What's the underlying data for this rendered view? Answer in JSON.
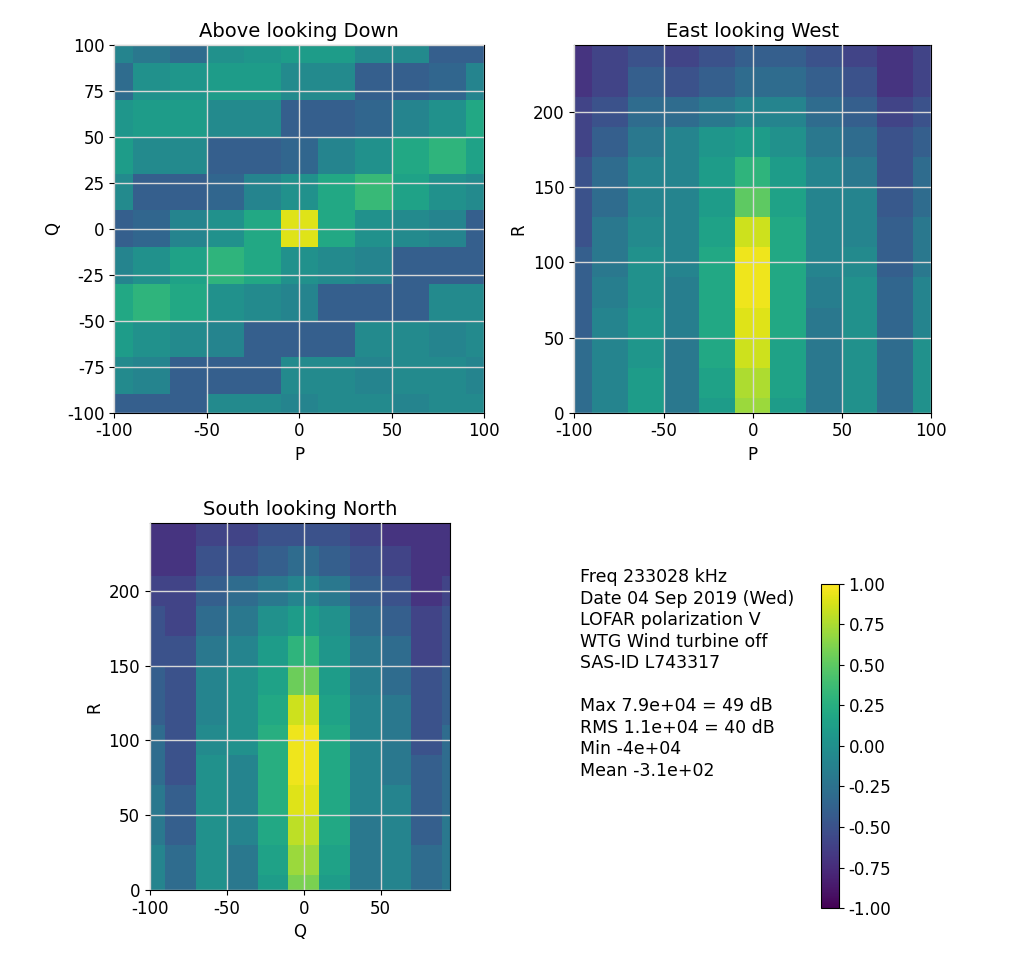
{
  "chart_data": [
    {
      "type": "heatmap",
      "title": "Above looking Down",
      "xlabel": "P",
      "ylabel": "Q",
      "xlim": [
        -100,
        100
      ],
      "ylim": [
        -100,
        100
      ],
      "xticks": [
        -100,
        -50,
        0,
        50,
        100
      ],
      "yticks": [
        -100,
        -75,
        -50,
        -25,
        0,
        25,
        50,
        75,
        100
      ],
      "grid": true,
      "x": [
        -100,
        -80,
        -60,
        -40,
        -20,
        0,
        20,
        40,
        60,
        80,
        100
      ],
      "y": [
        -100,
        -80,
        -60,
        -40,
        -20,
        0,
        20,
        40,
        60,
        80,
        100
      ],
      "cells": [
        [
          -0.4,
          -0.4,
          -0.4,
          -0.05,
          -0.05,
          -0.1,
          -0.05,
          -0.05,
          -0.1,
          -0.05,
          -0.05
        ],
        [
          -0.05,
          -0.1,
          -0.4,
          -0.4,
          -0.4,
          -0.05,
          -0.05,
          -0.1,
          -0.05,
          -0.05,
          -0.1
        ],
        [
          0.1,
          0.0,
          -0.05,
          -0.1,
          -0.4,
          -0.4,
          -0.4,
          -0.05,
          -0.05,
          -0.1,
          -0.05
        ],
        [
          0.2,
          0.3,
          0.2,
          0.0,
          -0.05,
          -0.1,
          -0.4,
          -0.4,
          -0.4,
          -0.05,
          -0.05
        ],
        [
          -0.1,
          0.0,
          0.15,
          0.3,
          0.2,
          0.0,
          -0.05,
          -0.1,
          -0.4,
          -0.4,
          -0.4
        ],
        [
          -0.4,
          -0.35,
          -0.1,
          0.0,
          0.2,
          0.9,
          0.2,
          0.0,
          -0.05,
          -0.1,
          -0.4
        ],
        [
          -0.05,
          -0.4,
          -0.4,
          -0.35,
          -0.1,
          0.0,
          0.2,
          0.35,
          0.15,
          0.0,
          -0.05
        ],
        [
          0.1,
          -0.05,
          -0.05,
          -0.4,
          -0.4,
          -0.35,
          -0.1,
          0.0,
          0.2,
          0.3,
          0.15
        ],
        [
          0.05,
          0.1,
          0.1,
          -0.05,
          -0.05,
          -0.4,
          -0.4,
          -0.35,
          -0.1,
          0.0,
          0.2
        ],
        [
          -0.3,
          0.0,
          0.05,
          0.1,
          0.1,
          -0.05,
          -0.05,
          -0.4,
          -0.4,
          -0.35,
          -0.1
        ],
        [
          -0.1,
          -0.2,
          -0.3,
          0.0,
          0.05,
          0.1,
          0.1,
          -0.05,
          -0.05,
          -0.4,
          -0.4
        ]
      ]
    },
    {
      "type": "heatmap",
      "title": "East looking West",
      "xlabel": "P",
      "ylabel": "R",
      "xlim": [
        -100,
        100
      ],
      "ylim": [
        0,
        245
      ],
      "xticks": [
        -100,
        -50,
        0,
        50,
        100
      ],
      "yticks": [
        0,
        50,
        100,
        150,
        200
      ],
      "grid": true,
      "x": [
        -100,
        -80,
        -60,
        -40,
        -20,
        0,
        20,
        40,
        60,
        80,
        100
      ],
      "y": [
        0,
        20,
        40,
        60,
        80,
        100,
        120,
        140,
        160,
        180,
        200,
        220,
        240
      ],
      "cells": [
        [
          -0.3,
          -0.1,
          0.1,
          -0.2,
          0.1,
          0.7,
          0.1,
          -0.2,
          0.0,
          -0.3,
          0.0
        ],
        [
          -0.3,
          -0.1,
          0.1,
          -0.2,
          0.15,
          0.75,
          0.15,
          -0.2,
          0.0,
          -0.3,
          0.0
        ],
        [
          -0.3,
          -0.1,
          0.05,
          -0.2,
          0.2,
          0.85,
          0.15,
          -0.2,
          0.0,
          -0.3,
          0.0
        ],
        [
          -0.4,
          -0.1,
          0.05,
          -0.15,
          0.2,
          0.9,
          0.2,
          -0.2,
          0.0,
          -0.35,
          -0.1
        ],
        [
          -0.4,
          -0.15,
          0.0,
          -0.15,
          0.2,
          0.95,
          0.2,
          -0.15,
          0.0,
          -0.35,
          -0.1
        ],
        [
          -0.4,
          -0.2,
          0.0,
          -0.1,
          0.2,
          0.95,
          0.2,
          -0.1,
          -0.05,
          -0.4,
          -0.2
        ],
        [
          -0.5,
          -0.2,
          -0.05,
          -0.1,
          0.15,
          0.85,
          0.2,
          -0.1,
          -0.1,
          -0.4,
          -0.2
        ],
        [
          -0.5,
          -0.3,
          -0.1,
          -0.1,
          0.1,
          0.5,
          0.15,
          -0.1,
          -0.1,
          -0.45,
          -0.3
        ],
        [
          -0.5,
          -0.3,
          -0.1,
          -0.1,
          0.1,
          0.3,
          0.1,
          -0.1,
          -0.2,
          -0.5,
          -0.3
        ],
        [
          -0.6,
          -0.4,
          -0.2,
          -0.1,
          0.05,
          0.1,
          0.0,
          -0.2,
          -0.3,
          -0.5,
          -0.4
        ],
        [
          -0.6,
          -0.5,
          -0.3,
          -0.3,
          -0.2,
          -0.1,
          -0.1,
          -0.3,
          -0.4,
          -0.6,
          -0.5
        ],
        [
          -0.7,
          -0.6,
          -0.4,
          -0.5,
          -0.4,
          -0.3,
          -0.3,
          -0.4,
          -0.5,
          -0.7,
          -0.6
        ],
        [
          -0.7,
          -0.6,
          -0.5,
          -0.6,
          -0.5,
          -0.4,
          -0.4,
          -0.5,
          -0.6,
          -0.7,
          -0.6
        ]
      ]
    },
    {
      "type": "heatmap",
      "title": "South looking North",
      "xlabel": "Q",
      "ylabel": "R",
      "xlim": [
        -100,
        95
      ],
      "ylim": [
        0,
        245
      ],
      "xticks": [
        -100,
        -50,
        0,
        50
      ],
      "yticks": [
        0,
        50,
        100,
        150,
        200
      ],
      "grid": true,
      "x": [
        -100,
        -80,
        -60,
        -40,
        -20,
        0,
        20,
        40,
        60,
        80,
        100
      ],
      "y": [
        0,
        20,
        40,
        60,
        80,
        100,
        120,
        140,
        160,
        180,
        200,
        220,
        240
      ],
      "cells": [
        [
          -0.1,
          -0.3,
          0.0,
          -0.2,
          0.1,
          0.6,
          0.1,
          -0.2,
          -0.1,
          -0.3,
          -0.2
        ],
        [
          -0.1,
          -0.3,
          0.0,
          -0.2,
          0.15,
          0.7,
          0.15,
          -0.2,
          -0.1,
          -0.3,
          -0.2
        ],
        [
          -0.2,
          -0.4,
          0.0,
          -0.1,
          0.2,
          0.8,
          0.2,
          -0.2,
          -0.1,
          -0.4,
          -0.2
        ],
        [
          -0.2,
          -0.4,
          0.0,
          -0.1,
          0.25,
          0.9,
          0.2,
          -0.1,
          -0.1,
          -0.4,
          -0.3
        ],
        [
          -0.3,
          -0.5,
          0.0,
          -0.1,
          0.25,
          0.95,
          0.2,
          -0.1,
          -0.2,
          -0.4,
          -0.3
        ],
        [
          -0.3,
          -0.5,
          -0.05,
          0.0,
          0.25,
          0.95,
          0.2,
          -0.1,
          -0.2,
          -0.5,
          -0.3
        ],
        [
          -0.4,
          -0.5,
          -0.1,
          0.0,
          0.2,
          0.85,
          0.15,
          -0.1,
          -0.2,
          -0.5,
          -0.4
        ],
        [
          -0.4,
          -0.5,
          -0.1,
          0.0,
          0.15,
          0.55,
          0.1,
          -0.15,
          -0.3,
          -0.5,
          -0.4
        ],
        [
          -0.5,
          -0.5,
          -0.2,
          -0.1,
          0.1,
          0.3,
          0.05,
          -0.2,
          -0.3,
          -0.6,
          -0.5
        ],
        [
          -0.5,
          -0.6,
          -0.3,
          -0.2,
          0.0,
          0.1,
          0.0,
          -0.3,
          -0.4,
          -0.6,
          -0.5
        ],
        [
          -0.6,
          -0.6,
          -0.4,
          -0.3,
          -0.2,
          -0.1,
          -0.2,
          -0.4,
          -0.5,
          -0.7,
          -0.6
        ],
        [
          -0.7,
          -0.7,
          -0.5,
          -0.5,
          -0.4,
          -0.3,
          -0.4,
          -0.5,
          -0.6,
          -0.7,
          -0.7
        ],
        [
          -0.7,
          -0.7,
          -0.6,
          -0.6,
          -0.5,
          -0.5,
          -0.5,
          -0.6,
          -0.7,
          -0.7,
          -0.7
        ]
      ]
    }
  ],
  "notes": [
    [
      "Freq 233028 kHz",
      "Date 04 Sep 2019 (Wed)",
      "LOFAR polarization V",
      "WTG Wind turbine off",
      "SAS-ID L743317"
    ],
    [
      "Max 7.9e+04 = 49 dB",
      "RMS 1.1e+04 = 40 dB",
      "Min -4e+04",
      "Mean -3.1e+02"
    ]
  ],
  "colorbar": {
    "range": [
      -1.0,
      1.0
    ],
    "ticks": [
      {
        "value": -1.0,
        "label": "-1.00"
      },
      {
        "value": -0.75,
        "label": "-0.75"
      },
      {
        "value": -0.5,
        "label": "-0.50"
      },
      {
        "value": -0.25,
        "label": "-0.25"
      },
      {
        "value": 0.0,
        "label": "0.00"
      },
      {
        "value": 0.25,
        "label": "0.25"
      },
      {
        "value": 0.5,
        "label": "0.50"
      },
      {
        "value": 0.75,
        "label": "0.75"
      },
      {
        "value": 1.0,
        "label": "1.00"
      }
    ]
  }
}
